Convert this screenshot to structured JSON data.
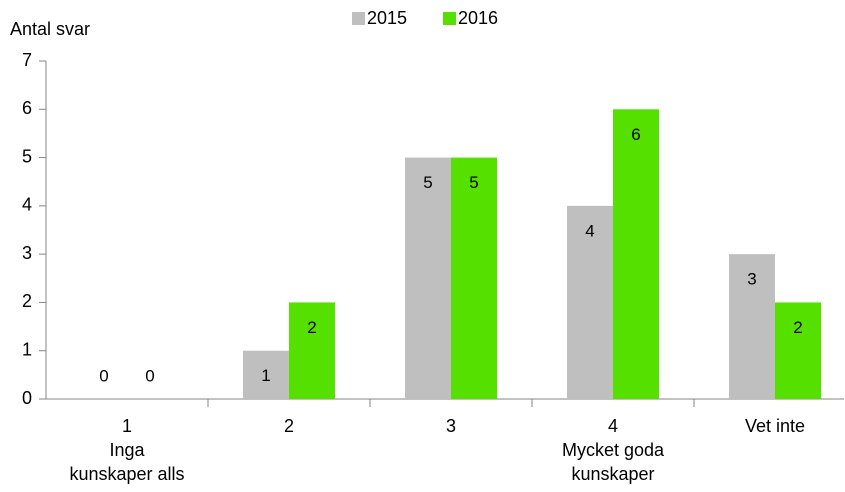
{
  "chart_data": {
    "type": "bar",
    "y_axis_label": "Antal svar",
    "categories": [
      [
        "1",
        "Inga",
        "kunskaper alls"
      ],
      [
        "2"
      ],
      [
        "3"
      ],
      [
        "4",
        "Mycket goda",
        "kunskaper"
      ],
      [
        "Vet inte"
      ]
    ],
    "series": [
      {
        "name": "2015",
        "color": "#bfbfbf",
        "values": [
          0,
          1,
          5,
          4,
          3
        ]
      },
      {
        "name": "2016",
        "color": "#55e000",
        "values": [
          0,
          2,
          5,
          6,
          2
        ]
      }
    ],
    "ylim": [
      0,
      7
    ],
    "yticks": [
      0,
      1,
      2,
      3,
      4,
      5,
      6,
      7
    ],
    "grid": false,
    "legend": "top"
  }
}
